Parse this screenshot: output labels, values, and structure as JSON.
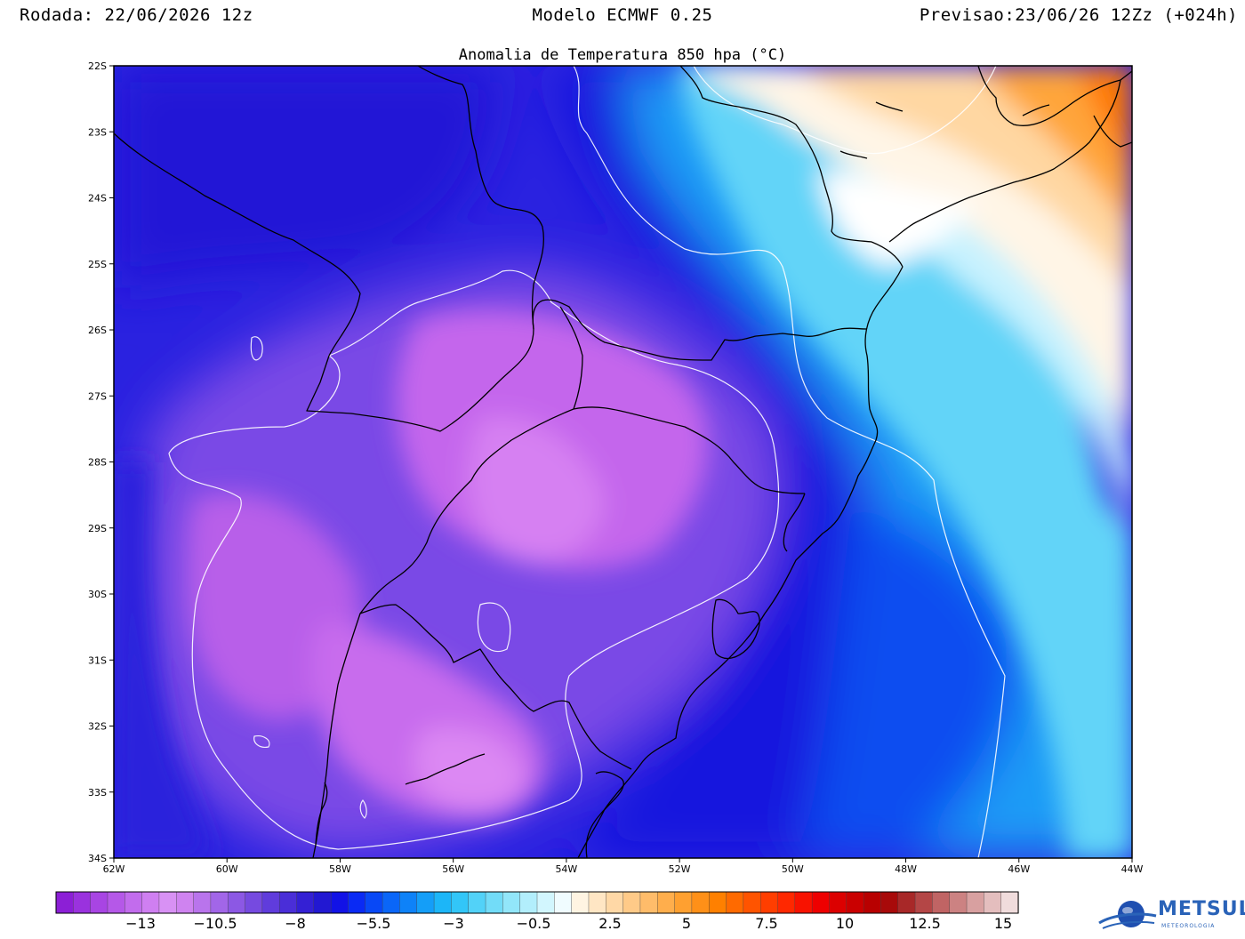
{
  "header": {
    "left": "Rodada: 22/06/2026 12z",
    "center": "Modelo ECMWF 0.25",
    "right": "Previsao:23/06/26 12Zz (+024h)"
  },
  "map": {
    "title": "Anomalia de Temperatura 850 hpa (°C)",
    "lat_ticks": [
      "22S",
      "23S",
      "24S",
      "25S",
      "26S",
      "27S",
      "28S",
      "29S",
      "30S",
      "31S",
      "32S",
      "33S",
      "34S"
    ],
    "lon_ticks": [
      "62W",
      "60W",
      "58W",
      "56W",
      "54W",
      "52W",
      "50W",
      "48W",
      "46W",
      "44W"
    ],
    "extent": {
      "lon_min": -62,
      "lon_max": -44,
      "lat_min": -34,
      "lat_max": -22
    }
  },
  "colorbar": {
    "colors": [
      "#8c1fd6",
      "#9a32de",
      "#a845e3",
      "#b558e8",
      "#c26ced",
      "#cf7ff1",
      "#d891f4",
      "#cf83f0",
      "#b974ec",
      "#a266e8",
      "#8c58e4",
      "#764ae0",
      "#603cdc",
      "#4a2ed8",
      "#3420d4",
      "#2218d2",
      "#1212e6",
      "#0a2af4",
      "#0848f6",
      "#0a66f8",
      "#0e82f8",
      "#149ef8",
      "#1cb6f8",
      "#32c6f8",
      "#52d2f8",
      "#72dcf8",
      "#92e6fa",
      "#b2eefc",
      "#d2f6fe",
      "#f0fcff",
      "#fff4e2",
      "#ffe6c4",
      "#ffd8a6",
      "#ffca88",
      "#ffbc6a",
      "#ffae4c",
      "#ffa030",
      "#ff9018",
      "#ff8000",
      "#ff6a00",
      "#ff5400",
      "#ff3e00",
      "#ff2800",
      "#f81200",
      "#ee0000",
      "#dc0000",
      "#ca0000",
      "#b80000",
      "#a80a0a",
      "#a82828",
      "#b44646",
      "#c06464",
      "#cc8282",
      "#d8a0a0",
      "#e4bebe",
      "#f0dcdc"
    ],
    "labels": [
      "−13",
      "−10.5",
      "−8",
      "−5.5",
      "−3",
      "−0.5",
      "2.5",
      "5",
      "7.5",
      "10",
      "12.5",
      "15"
    ]
  },
  "logo": {
    "name": "METSUL",
    "tagline": "METEOROLOGIA"
  }
}
